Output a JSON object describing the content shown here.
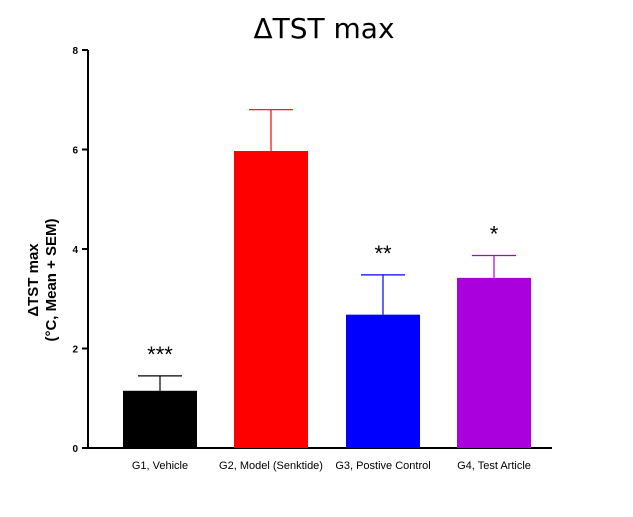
{
  "chart_data": {
    "type": "bar",
    "title": "ΔTST max",
    "ylabel_line1": "ΔTST max",
    "ylabel_line2": "(°C, Mean + SEM)",
    "xlabel": "",
    "ylim": [
      0,
      8
    ],
    "yticks": [
      0,
      2,
      4,
      6,
      8
    ],
    "grid": false,
    "categories": [
      "G1, Vehicle",
      "G2, Model (Senktide)",
      "G3, Postive Control",
      "G4, Test Article"
    ],
    "values": [
      1.15,
      5.97,
      2.68,
      3.42
    ],
    "sem": [
      0.3,
      0.83,
      0.8,
      0.45
    ],
    "significance": [
      "***",
      "",
      "**",
      "*"
    ],
    "colors": [
      "#000000",
      "#ff0000",
      "#0000ff",
      "#aa00dd"
    ]
  }
}
